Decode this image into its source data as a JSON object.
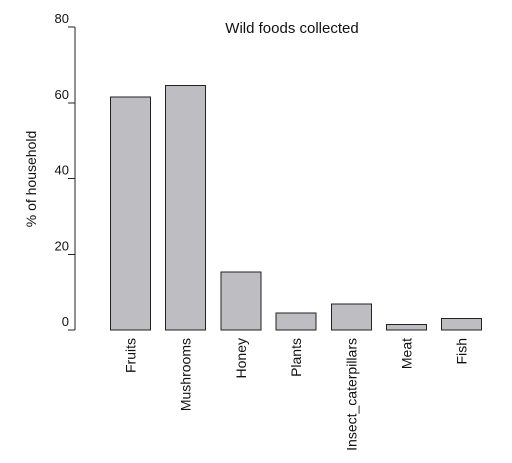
{
  "chart_data": {
    "type": "bar",
    "title": "Wild foods collected",
    "xlabel": "",
    "ylabel": "% of household",
    "categories": [
      "Fruits",
      "Mushrooms",
      "Honey",
      "Plants",
      "Insect_caterpillars",
      "Meat",
      "Fish"
    ],
    "values": [
      61.5,
      64.5,
      15.3,
      4.5,
      6.8,
      1.5,
      3.0
    ],
    "ylim": [
      0,
      80
    ],
    "yticks": [
      0,
      20,
      40,
      60,
      80
    ],
    "grid": false,
    "colors": {
      "bar_fill": "#bdbdc2",
      "bar_stroke": "#222222",
      "axis": "#222222",
      "text": "#111111"
    }
  }
}
